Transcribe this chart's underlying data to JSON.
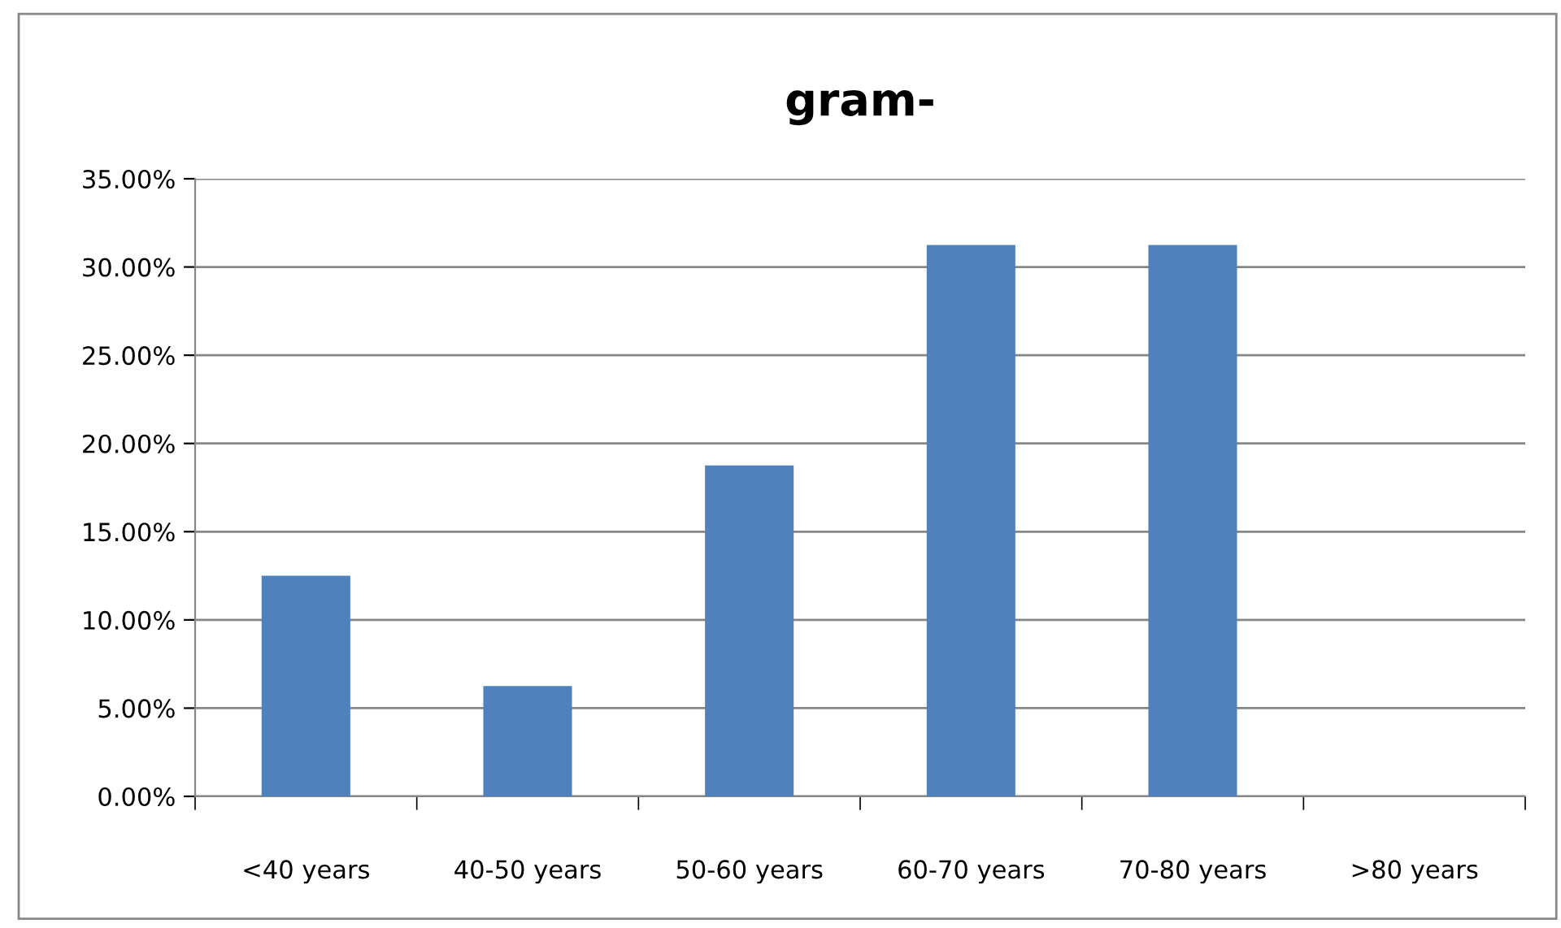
{
  "chart_data": {
    "type": "bar",
    "title": "gram-",
    "categories": [
      "<40 years",
      "40-50 years",
      "50-60 years",
      "60-70 years",
      "70-80 years",
      ">80 years"
    ],
    "values": [
      12.5,
      6.25,
      18.75,
      31.25,
      31.25,
      0
    ],
    "color": "#4f81bd",
    "ylim": [
      0,
      35
    ],
    "yticks": [
      {
        "value": 0,
        "label": "0.00%"
      },
      {
        "value": 5,
        "label": "5.00%"
      },
      {
        "value": 10,
        "label": "10.00%"
      },
      {
        "value": 15,
        "label": "15.00%"
      },
      {
        "value": 20,
        "label": "20.00%"
      },
      {
        "value": 25,
        "label": "25.00%"
      },
      {
        "value": 30,
        "label": "30.00%"
      },
      {
        "value": 35,
        "label": "35.00%"
      }
    ],
    "grid": "y"
  }
}
